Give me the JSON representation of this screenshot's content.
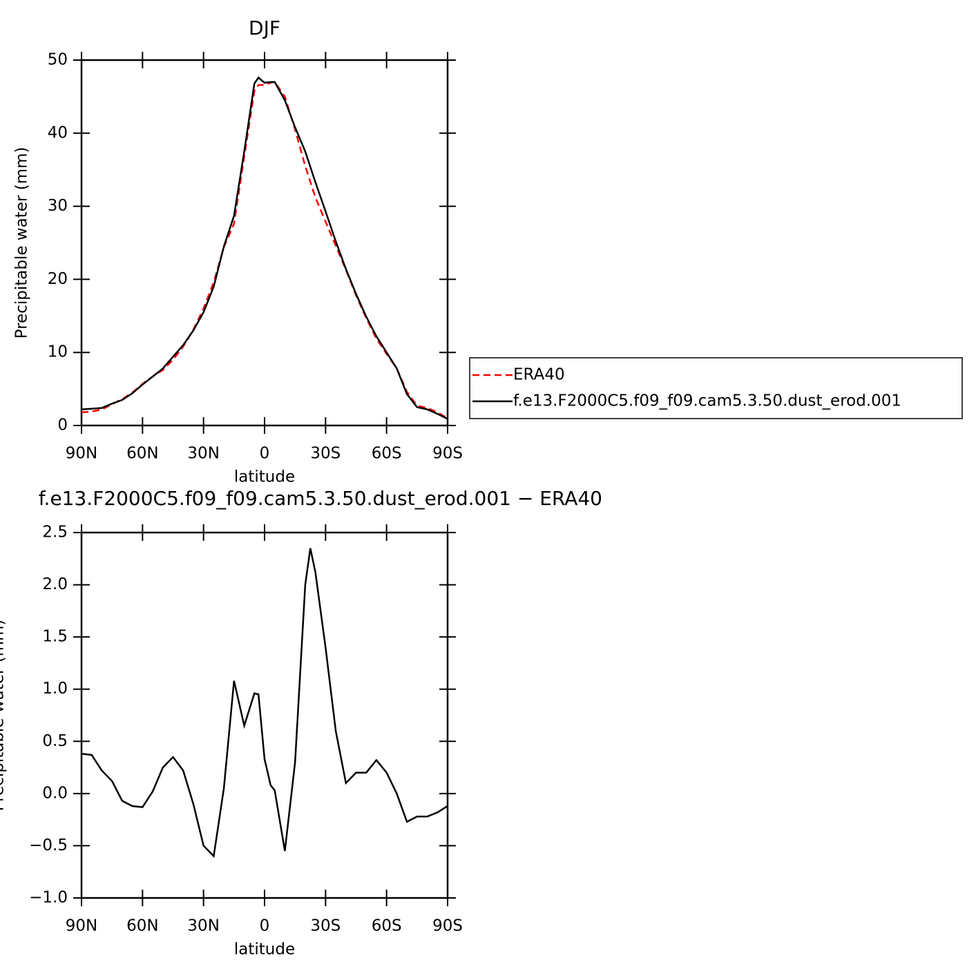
{
  "chart_data": [
    {
      "type": "line",
      "title": "DJF",
      "xlabel": "latitude",
      "ylabel": "Precipitable water (mm)",
      "x": [
        90,
        85,
        80,
        75,
        70,
        65,
        60,
        55,
        50,
        45,
        40,
        35,
        30,
        25,
        20,
        15,
        10,
        5,
        3,
        0,
        -3,
        -5,
        -10,
        -15,
        -20,
        -25,
        -30,
        -35,
        -40,
        -45,
        -50,
        -55,
        -60,
        -65,
        -70,
        -75,
        -80,
        -85,
        -90
      ],
      "series": [
        {
          "name": "ERA40",
          "color": "#ff0000",
          "dashed": true,
          "values": [
            1.8,
            1.9,
            2.2,
            2.9,
            3.6,
            4.5,
            5.7,
            6.7,
            7.6,
            9.0,
            10.8,
            13.1,
            16.0,
            19.6,
            24.4,
            27.6,
            36.8,
            45.8,
            46.6,
            46.6,
            46.9,
            47.0,
            45.0,
            40.5,
            35.5,
            31.2,
            27.9,
            24.6,
            21.3,
            17.8,
            14.7,
            11.9,
            9.8,
            7.8,
            4.6,
            2.7,
            2.4,
            1.8,
            1.0
          ]
        },
        {
          "name": "f.e13.F2000C5.f09_f09.cam5.3.50.dust_erod.001",
          "color": "#000000",
          "dashed": false,
          "values": [
            2.2,
            2.3,
            2.4,
            3.0,
            3.5,
            4.4,
            5.6,
            6.7,
            7.8,
            9.4,
            11.0,
            13.0,
            15.5,
            19.0,
            24.5,
            28.7,
            37.5,
            46.8,
            47.6,
            46.9,
            47.0,
            47.0,
            44.5,
            40.8,
            37.5,
            33.3,
            29.3,
            25.2,
            21.4,
            18.0,
            14.9,
            12.2,
            10.0,
            7.8,
            4.3,
            2.5,
            2.2,
            1.6,
            0.9
          ]
        }
      ],
      "xlim": [
        90,
        -90
      ],
      "xticks": [
        {
          "value": 90,
          "label": "90N"
        },
        {
          "value": 60,
          "label": "60N"
        },
        {
          "value": 30,
          "label": "30N"
        },
        0,
        {
          "value": -30,
          "label": "30S"
        },
        {
          "value": -60,
          "label": "60S"
        },
        {
          "value": -90,
          "label": "90S"
        }
      ],
      "ylim": [
        0,
        50
      ],
      "yticks": [
        0,
        10,
        20,
        30,
        40,
        50
      ],
      "legend": "outside-right"
    },
    {
      "type": "line",
      "title": "f.e13.F2000C5.f09_f09.cam5.3.50.dust_erod.001 − ERA40",
      "xlabel": "latitude",
      "ylabel": "Precipitable water (mm)",
      "x": [
        90,
        85,
        80,
        75,
        70,
        65,
        60,
        55,
        50,
        45,
        40,
        35,
        30,
        25,
        20,
        15,
        10,
        5,
        3,
        0,
        -3,
        -5,
        -10,
        -15,
        -20,
        -22.5,
        -25,
        -30,
        -35,
        -40,
        -45,
        -50,
        -55,
        -60,
        -65,
        -70,
        -75,
        -80,
        -85,
        -90
      ],
      "series": [
        {
          "color": "#000000",
          "dashed": false,
          "values": [
            0.38,
            0.37,
            0.22,
            0.12,
            -0.07,
            -0.12,
            -0.13,
            0.02,
            0.25,
            0.35,
            0.22,
            -0.1,
            -0.5,
            -0.6,
            0.05,
            1.08,
            0.65,
            0.96,
            0.95,
            0.33,
            0.08,
            0.03,
            -0.55,
            0.3,
            2.0,
            2.35,
            2.12,
            1.4,
            0.6,
            0.1,
            0.2,
            0.2,
            0.32,
            0.2,
            0.0,
            -0.27,
            -0.22,
            -0.22,
            -0.18,
            -0.12
          ]
        }
      ],
      "xlim": [
        90,
        -90
      ],
      "xticks": [
        {
          "value": 90,
          "label": "90N"
        },
        {
          "value": 60,
          "label": "60N"
        },
        {
          "value": 30,
          "label": "30N"
        },
        0,
        {
          "value": -30,
          "label": "30S"
        },
        {
          "value": -60,
          "label": "60S"
        },
        {
          "value": -90,
          "label": "90S"
        }
      ],
      "ylim": [
        -1,
        2.5
      ],
      "yticks": [
        {
          "value": -1,
          "label": "−1.0"
        },
        {
          "value": -0.5,
          "label": "−0.5"
        },
        {
          "value": 0,
          "label": "0.0"
        },
        0.5,
        {
          "value": 1,
          "label": "1.0"
        },
        1.5,
        {
          "value": 2,
          "label": "2.0"
        },
        2.5
      ]
    }
  ]
}
